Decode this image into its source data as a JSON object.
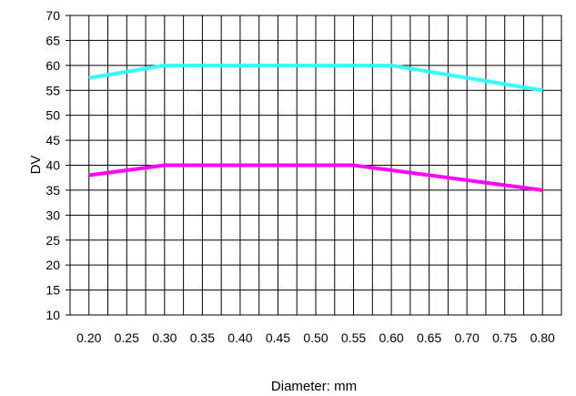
{
  "chart_data": {
    "type": "line",
    "xlabel": "Diameter: mm",
    "ylabel": "DV",
    "xlim": [
      0.175,
      0.825
    ],
    "ylim": [
      10,
      70
    ],
    "x_ticks": [
      "0.20",
      "0.25",
      "0.30",
      "0.35",
      "0.40",
      "0.45",
      "0.50",
      "0.55",
      "0.60",
      "0.65",
      "0.70",
      "0.75",
      "0.80"
    ],
    "y_ticks": [
      "10",
      "15",
      "20",
      "25",
      "30",
      "35",
      "40",
      "45",
      "50",
      "55",
      "60",
      "65",
      "70"
    ],
    "grid": true,
    "legend": "none",
    "series": [
      {
        "color": "#33ffff",
        "x": [
          0.2,
          0.3,
          0.6,
          0.8
        ],
        "y": [
          57.5,
          60,
          60,
          55
        ]
      },
      {
        "color": "#ff00ff",
        "x": [
          0.2,
          0.3,
          0.55,
          0.8
        ],
        "y": [
          38,
          40,
          40,
          35
        ]
      }
    ]
  }
}
